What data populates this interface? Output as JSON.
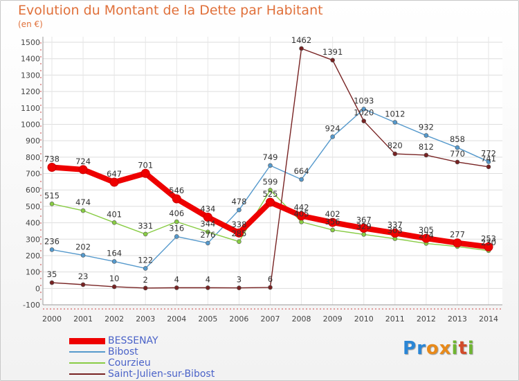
{
  "title": "Evolution du Montant de la Dette par Habitant",
  "subtitle": "(en €)",
  "logo": {
    "letters": [
      "P",
      "r",
      "o",
      "x",
      "i",
      "t",
      "i"
    ],
    "colors": [
      "#2a86d6",
      "#2a86d6",
      "#e88a1a",
      "#e88a1a",
      "#6fb532",
      "#d24b2a",
      "#6fb532"
    ]
  },
  "chart_data": {
    "type": "line",
    "title": "Evolution du Montant de la Dette par Habitant",
    "subtitle": "(en €)",
    "xlabel": "",
    "ylabel": "",
    "x": [
      2000,
      2001,
      2002,
      2003,
      2004,
      2005,
      2006,
      2007,
      2008,
      2009,
      2010,
      2011,
      2012,
      2013,
      2014
    ],
    "ylim": [
      -100,
      1500
    ],
    "yticks": [
      -100,
      0,
      100,
      200,
      300,
      400,
      500,
      600,
      700,
      800,
      900,
      1000,
      1100,
      1200,
      1300,
      1400,
      1500
    ],
    "grid": true,
    "legend": "bottom-left",
    "series": [
      {
        "name": "BESSENAY",
        "color": "#ee0000",
        "emphasis": true,
        "values": [
          738,
          724,
          647,
          701,
          546,
          434,
          338,
          525,
          442,
          402,
          367,
          337,
          305,
          277,
          253
        ],
        "labels": [
          "738",
          "724",
          "647",
          "701",
          "546",
          "434",
          "338",
          "525",
          "442",
          "402",
          "367",
          "337",
          "305",
          "277",
          "253"
        ]
      },
      {
        "name": "Bibost",
        "color": "#5599cc",
        "values": [
          236,
          202,
          164,
          122,
          316,
          276,
          478,
          749,
          664,
          924,
          1093,
          1012,
          932,
          858,
          772
        ],
        "labels": [
          "236",
          "202",
          "164",
          "122",
          "316",
          "276",
          "478",
          "749",
          "664",
          "924",
          "1093",
          "1012",
          "932",
          "858",
          "772"
        ]
      },
      {
        "name": "Courzieu",
        "color": "#88cc44",
        "values": [
          515,
          474,
          401,
          331,
          406,
          344,
          285,
          599,
          405,
          356,
          329,
          303,
          274,
          255,
          230
        ],
        "labels": [
          "515",
          "474",
          "401",
          "331",
          "406",
          "344",
          "285",
          "599",
          "405",
          "356",
          "329",
          "303",
          "274",
          "",
          "230"
        ]
      },
      {
        "name": "Saint-Julien-sur-Bibost",
        "color": "#772222",
        "values": [
          35,
          23,
          10,
          2,
          4,
          4,
          3,
          6,
          1462,
          1391,
          1020,
          820,
          812,
          770,
          741
        ],
        "labels": [
          "35",
          "23",
          "10",
          "2",
          "4",
          "4",
          "3",
          "6",
          "1462",
          "1391",
          "1020",
          "820",
          "812",
          "770",
          "741"
        ]
      }
    ]
  }
}
